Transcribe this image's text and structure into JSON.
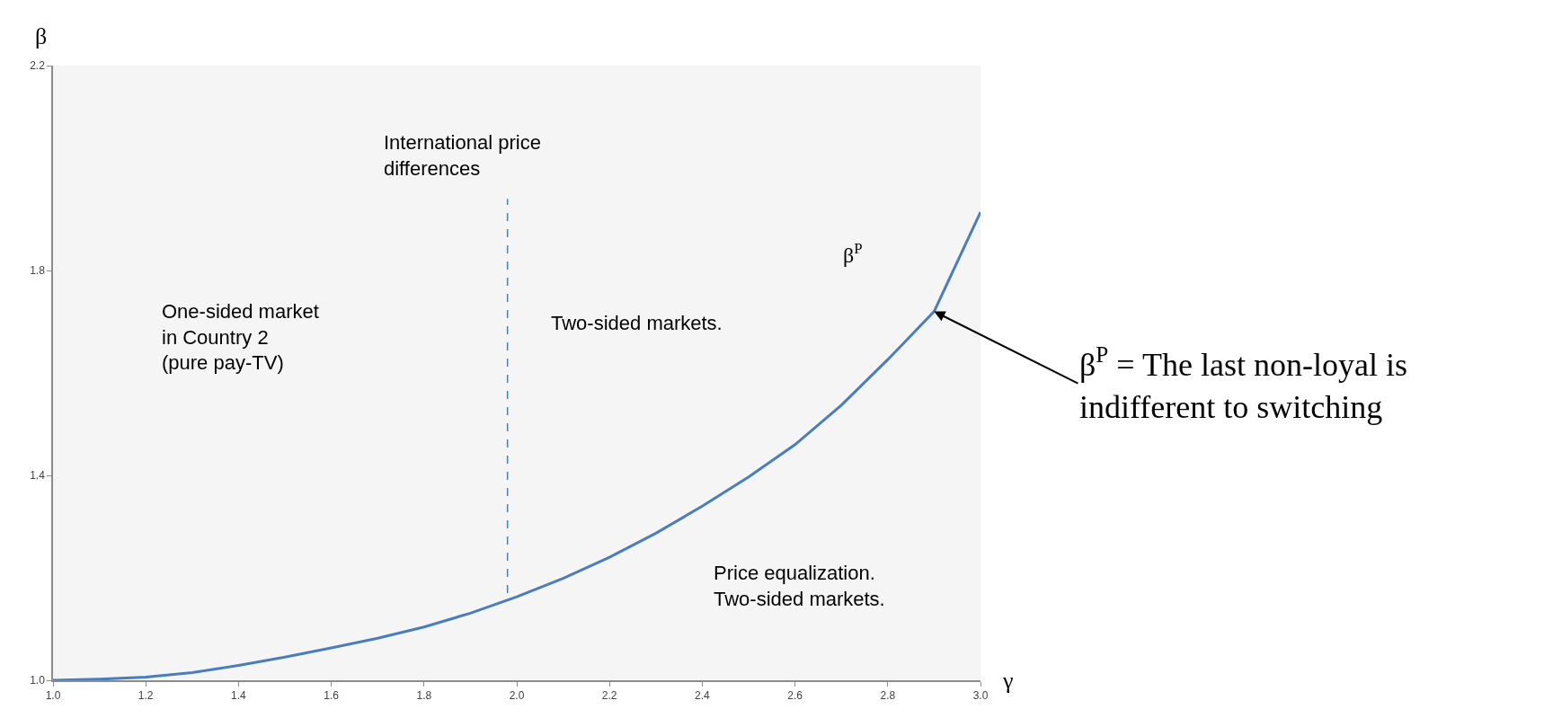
{
  "chart_data": {
    "type": "line",
    "xlabel": "γ",
    "ylabel": "β",
    "x": [
      1.0,
      1.1,
      1.2,
      1.3,
      1.4,
      1.5,
      1.6,
      1.7,
      1.8,
      1.9,
      2.0,
      2.1,
      2.2,
      2.3,
      2.4,
      2.5,
      2.6,
      2.7,
      2.8,
      2.9,
      3.0
    ],
    "series": [
      {
        "color": "#4a7ebb",
        "values": [
          1.0,
          1.002,
          1.006,
          1.015,
          1.029,
          1.045,
          1.063,
          1.082,
          1.104,
          1.131,
          1.163,
          1.199,
          1.24,
          1.287,
          1.34,
          1.397,
          1.46,
          1.537,
          1.626,
          1.72,
          1.914
        ]
      },
      {
        "type": "line",
        "x": [
          1.98,
          1.98
        ],
        "color": "#4a7ebb",
        "line_style": "dashed",
        "values": [
          1.17,
          1.94
        ]
      }
    ],
    "annotations": [
      "International price\ndifferences",
      "One-sided market\nin Country 2\n(pure pay-TV)",
      "Two-sided markets.",
      "Price equalization.\nTwo-sided markets.",
      "β$^{P}$",
      {
        "text": "β$^{P}$ = The last non-loyal is\nindifferent to switching",
        "x": 2.9,
        "y": 1.72
      }
    ],
    "xlim": [
      1.0,
      3.0
    ],
    "ylim": [
      1.0,
      2.2
    ],
    "xticks": [
      {
        "value": 1.0,
        "label": "1.0"
      },
      {
        "value": 1.2,
        "label": "1.2"
      },
      {
        "value": 1.4,
        "label": "1.4"
      },
      {
        "value": 1.6,
        "label": "1.6"
      },
      {
        "value": 1.8,
        "label": "1.8"
      },
      {
        "value": 2.0,
        "label": "2.0"
      },
      {
        "value": 2.2,
        "label": "2.2"
      },
      {
        "value": 2.4,
        "label": "2.4"
      },
      {
        "value": 2.6,
        "label": "2.6"
      },
      {
        "value": 2.8,
        "label": "2.8"
      },
      {
        "value": 3.0,
        "label": "3.0"
      }
    ],
    "yticks": [
      {
        "value": 1.0,
        "label": "1.0"
      },
      {
        "value": 1.4,
        "label": "1.4"
      },
      {
        "value": 1.8,
        "label": "1.8"
      },
      {
        "value": 2.2,
        "label": "2.2"
      }
    ],
    "marker": "none",
    "line_style": "solid"
  }
}
